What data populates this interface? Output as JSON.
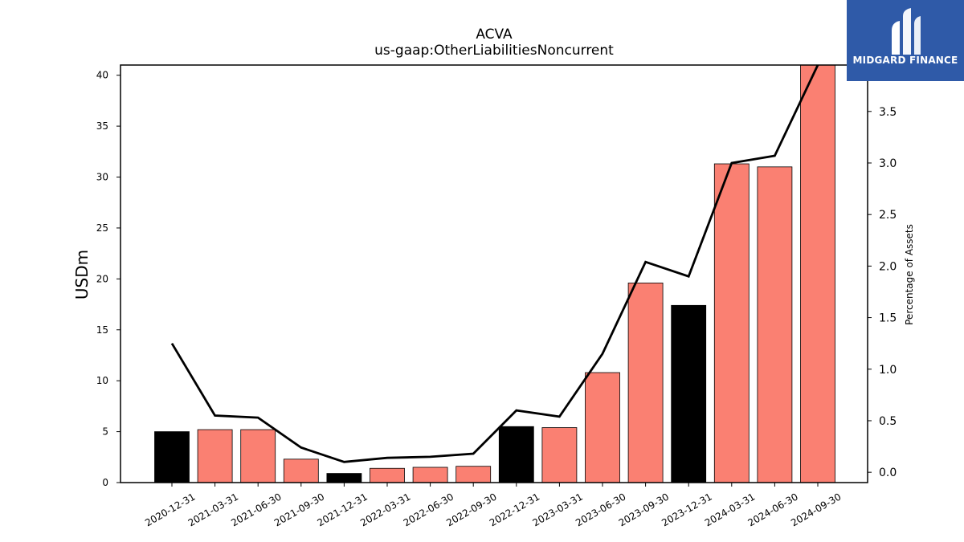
{
  "brand": {
    "name": "MIDGARD FINANCE",
    "color": "#2f5aa8"
  },
  "chart_data": {
    "type": "bar",
    "title": "ACVA",
    "subtitle": "us-gaap:OtherLiabilitiesNoncurrent",
    "ylabel": "USDm",
    "y2label": "Percentage of Assets",
    "ylim": [
      0,
      41
    ],
    "y2lim": [
      -0.1,
      3.95
    ],
    "yticks": [
      0,
      5,
      10,
      15,
      20,
      25,
      30,
      35,
      40
    ],
    "y2ticks": [
      0.0,
      0.5,
      1.0,
      1.5,
      2.0,
      2.5,
      3.0,
      3.5
    ],
    "categories": [
      "2020-12-31",
      "2021-03-31",
      "2021-06-30",
      "2021-09-30",
      "2021-12-31",
      "2022-03-31",
      "2022-06-30",
      "2022-09-30",
      "2022-12-31",
      "2023-03-31",
      "2023-06-30",
      "2023-09-30",
      "2023-12-31",
      "2024-03-31",
      "2024-06-30",
      "2024-09-30"
    ],
    "series": [
      {
        "type": "bar",
        "axis": "left",
        "values": [
          5.0,
          5.2,
          5.2,
          2.3,
          0.9,
          1.4,
          1.5,
          1.6,
          5.5,
          5.4,
          10.8,
          19.6,
          17.4,
          31.3,
          31.0,
          41.0
        ],
        "colors": [
          "#000000",
          "#fa8072",
          "#fa8072",
          "#fa8072",
          "#000000",
          "#fa8072",
          "#fa8072",
          "#fa8072",
          "#000000",
          "#fa8072",
          "#fa8072",
          "#fa8072",
          "#000000",
          "#fa8072",
          "#fa8072",
          "#fa8072"
        ]
      },
      {
        "type": "line",
        "axis": "right",
        "color": "#000000",
        "values": [
          1.25,
          0.55,
          0.53,
          0.24,
          0.1,
          0.14,
          0.15,
          0.18,
          0.6,
          0.54,
          1.15,
          2.04,
          1.9,
          3.0,
          3.07,
          3.95
        ]
      }
    ],
    "grid": false
  }
}
